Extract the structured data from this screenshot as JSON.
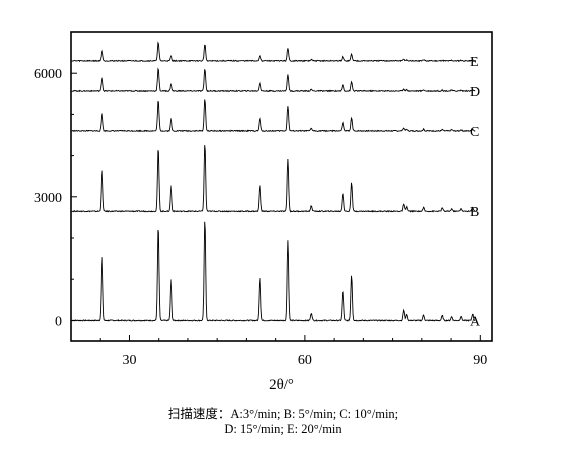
{
  "chart_data": {
    "type": "line",
    "title": "",
    "xlabel": "2θ/°",
    "ylabel": "",
    "xlim": [
      20,
      92
    ],
    "ylim": [
      -500,
      7000
    ],
    "x_ticks": [
      30,
      60,
      90
    ],
    "y_ticks": [
      0,
      3000,
      6000
    ],
    "x_tick_labels": [
      "30",
      "60",
      "90"
    ],
    "y_tick_labels": [
      "0",
      "3000",
      "6000"
    ],
    "grid": false,
    "legend": "series labels at right end of each trace",
    "line_color": "#000000",
    "peaks_2theta": [
      25.3,
      36.9,
      37.8,
      38.6,
      48.1,
      53.9,
      55.1,
      62.2,
      62.7,
      68.8,
      70.3,
      75.1,
      76.0,
      82.7,
      83.2
    ],
    "series": [
      {
        "name": "A",
        "baseline": 0,
        "x": [
          25.3,
          34.9,
          37.1,
          42.9,
          52.3,
          57.1,
          61.1,
          66.5,
          68.0,
          76.9,
          77.4,
          80.3,
          83.5,
          85.1,
          86.7,
          88.7
        ],
        "peak_heights": [
          1550,
          2300,
          1000,
          2450,
          1050,
          1950,
          180,
          720,
          1100,
          250,
          150,
          130,
          120,
          90,
          100,
          160
        ]
      },
      {
        "name": "B",
        "baseline": 2650,
        "x": [
          25.3,
          34.9,
          37.1,
          42.9,
          52.3,
          57.1,
          61.1,
          66.5,
          68.0,
          76.9,
          77.4,
          80.3,
          83.5,
          85.1,
          86.7,
          88.7
        ],
        "peak_heights": [
          1000,
          1550,
          620,
          1650,
          640,
          1270,
          130,
          440,
          700,
          170,
          110,
          90,
          80,
          60,
          70,
          100
        ]
      },
      {
        "name": "C",
        "baseline": 4600,
        "x": [
          25.3,
          34.9,
          37.1,
          42.9,
          52.3,
          57.1,
          61.1,
          66.5,
          68.0,
          76.9,
          77.4,
          80.3,
          83.5,
          85.1,
          86.7,
          88.7
        ],
        "peak_heights": [
          430,
          750,
          300,
          770,
          310,
          600,
          60,
          200,
          310,
          70,
          40,
          40,
          30,
          30,
          30,
          40
        ]
      },
      {
        "name": "D",
        "baseline": 5570,
        "x": [
          25.3,
          34.9,
          37.1,
          42.9,
          52.3,
          57.1,
          61.1,
          66.5,
          68.0,
          76.9,
          77.4,
          80.3,
          83.5,
          85.1,
          86.7,
          88.7
        ],
        "peak_heights": [
          330,
          550,
          180,
          540,
          200,
          400,
          40,
          150,
          220,
          50,
          30,
          30,
          20,
          20,
          20,
          30
        ]
      },
      {
        "name": "E",
        "baseline": 6300,
        "x": [
          25.3,
          34.9,
          37.1,
          42.9,
          52.3,
          57.1,
          61.1,
          66.5,
          68.0,
          76.9,
          77.4,
          80.3,
          83.5,
          85.1,
          86.7,
          88.7
        ],
        "peak_heights": [
          250,
          450,
          130,
          400,
          130,
          300,
          30,
          100,
          160,
          40,
          20,
          20,
          15,
          15,
          15,
          20
        ]
      }
    ]
  },
  "caption": {
    "line1": "扫描速度：A:3°/min; B: 5°/min; C: 10°/min;",
    "line2": "D: 15°/min; E: 20°/min"
  }
}
